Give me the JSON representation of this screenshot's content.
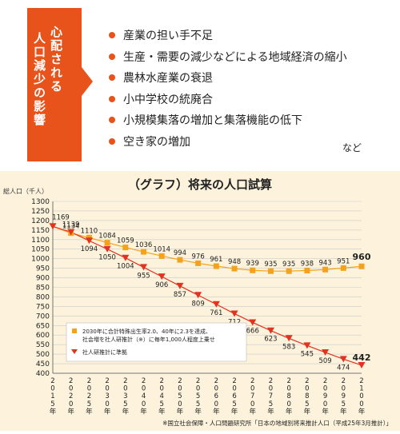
{
  "concerns": {
    "heading_line1": "心配される",
    "heading_line2": "人口減少の影響",
    "items": [
      "産業の担い手不足",
      "生産・需要の減少などによる地域経済の縮小",
      "農林水産業の衰退",
      "小中学校の統廃合",
      "小規模集落の増加と集落機能の低下",
      "空き家の増加"
    ],
    "etc": "など"
  },
  "colors": {
    "accent": "#e8531b",
    "series_a": "#f4a21c",
    "series_b": "#e23220",
    "grid": "#cccccc",
    "chart_bg": "#fdf3dc"
  },
  "chart_data": {
    "type": "line",
    "title": "（グラフ）将来の人口試算",
    "ylabel": "総人口（千人）",
    "xlabel": "",
    "ylim": [
      400,
      1300
    ],
    "yticks": [
      400,
      450,
      500,
      550,
      600,
      650,
      700,
      750,
      800,
      850,
      900,
      950,
      1000,
      1050,
      1100,
      1150,
      1200,
      1250,
      1300
    ],
    "x": [
      "2015年",
      "2020年",
      "2025年",
      "2030年",
      "2035年",
      "2040年",
      "2045年",
      "2050年",
      "2055年",
      "2060年",
      "2065年",
      "2070年",
      "2075年",
      "2080年",
      "2085年",
      "2090年",
      "2095年",
      "2100年"
    ],
    "series": [
      {
        "name": "2030年に合計特殊出生率2.0、40年に2.3を達成、社会増を社人研推計（※）に毎年1,000人程度上乗せ",
        "marker": "square",
        "values": [
          1169,
          1134,
          1110,
          1084,
          1059,
          1036,
          1014,
          994,
          976,
          961,
          948,
          939,
          935,
          935,
          938,
          943,
          951,
          960
        ]
      },
      {
        "name": "社人研推計に準拠",
        "marker": "triangle-down",
        "values": [
          1169,
          1139,
          1094,
          1050,
          1004,
          955,
          906,
          857,
          809,
          761,
          712,
          666,
          623,
          583,
          545,
          509,
          474,
          442
        ]
      }
    ],
    "grid": true,
    "legend_position": "bottom-left",
    "source_note": "※国立社会保障・人口問題研究所「日本の地域別将来推計人口（平成25年3月推計）」"
  }
}
